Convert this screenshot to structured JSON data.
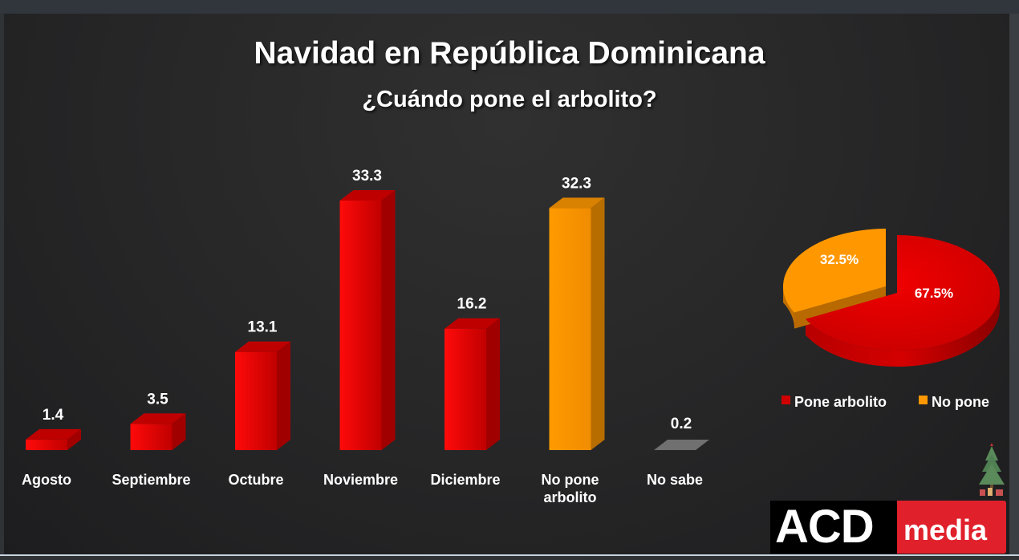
{
  "header": {
    "title": "Navidad en República Dominicana",
    "subtitle": "¿Cuándo pone el arbolito?"
  },
  "colors": {
    "red": "#e00000",
    "orange": "#ff9800",
    "gray": "#707070",
    "background": "#262627",
    "logo_red": "#e0202b"
  },
  "chart_data": [
    {
      "type": "bar",
      "title": "¿Cuándo pone el arbolito?",
      "xlabel": "",
      "ylabel": "",
      "ylim": [
        0,
        35
      ],
      "grid": false,
      "categories": [
        "Agosto",
        "Septiembre",
        "Octubre",
        "Noviembre",
        "Diciembre",
        "No pone arbolito",
        "No sabe"
      ],
      "category_lines": [
        [
          "Agosto"
        ],
        [
          "Septiembre"
        ],
        [
          "Octubre"
        ],
        [
          "Noviembre"
        ],
        [
          "Diciembre"
        ],
        [
          "No pone",
          "arbolito"
        ],
        [
          "No sabe"
        ]
      ],
      "values": [
        1.4,
        3.5,
        13.1,
        33.3,
        16.2,
        32.3,
        0.2
      ],
      "value_labels": [
        "1.4",
        "3.5",
        "13.1",
        "33.3",
        "16.2",
        "32.3",
        "0.2"
      ],
      "bar_colors": [
        "#e00000",
        "#e00000",
        "#e00000",
        "#e00000",
        "#e00000",
        "#ff9800",
        "#707070"
      ]
    },
    {
      "type": "pie",
      "title": "",
      "slices": [
        {
          "label": "Pone arbolito",
          "value": 67.5,
          "value_label": "67.5%",
          "color": "#e00000"
        },
        {
          "label": "No pone",
          "value": 32.5,
          "value_label": "32.5%",
          "color": "#ff9800"
        }
      ],
      "legend_position": "bottom"
    }
  ],
  "logo": {
    "part1": "ACD",
    "part2": "media"
  },
  "decoration": {
    "icon": "christmas-tree-icon"
  }
}
